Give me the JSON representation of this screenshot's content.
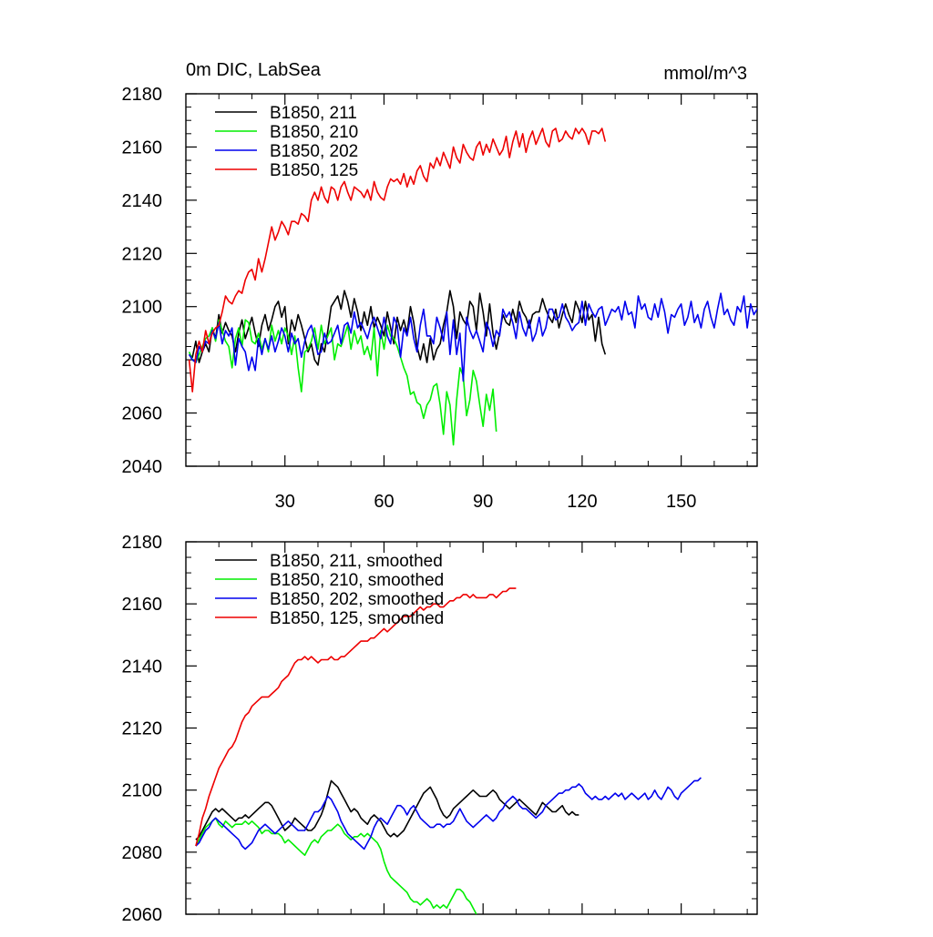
{
  "chart_data": [
    {
      "type": "line",
      "title": "0m DIC, LabSea",
      "units": "mmol/m^3",
      "xlim": [
        0,
        173
      ],
      "ylim": [
        2040,
        2180
      ],
      "x_ticks": [
        30,
        60,
        90,
        120,
        150
      ],
      "y_ticks": [
        2040,
        2060,
        2080,
        2100,
        2120,
        2140,
        2160,
        2180
      ],
      "grid": false,
      "legend_position": "top-left",
      "series": [
        {
          "name": "B1850, 211",
          "color": "#000000",
          "start_x": 1,
          "values": [
            2082,
            2081,
            2087,
            2079,
            2083,
            2086,
            2083,
            2092,
            2088,
            2097,
            2090,
            2094,
            2091,
            2089,
            2083,
            2090,
            2095,
            2088,
            2092,
            2096,
            2090,
            2085,
            2093,
            2097,
            2091,
            2095,
            2100,
            2102,
            2096,
            2100,
            2086,
            2095,
            2091,
            2097,
            2093,
            2088,
            2083,
            2086,
            2080,
            2078,
            2086,
            2083,
            2091,
            2100,
            2102,
            2104,
            2099,
            2106,
            2102,
            2096,
            2103,
            2098,
            2091,
            2098,
            2093,
            2100,
            2092,
            2096,
            2093,
            2089,
            2098,
            2092,
            2086,
            2096,
            2091,
            2095,
            2090,
            2100,
            2094,
            2085,
            2080,
            2086,
            2079,
            2088,
            2080,
            2084,
            2086,
            2093,
            2098,
            2106,
            2100,
            2088,
            2098,
            2095,
            2093,
            2102,
            2100,
            2091,
            2105,
            2098,
            2089,
            2101,
            2090,
            2084,
            2090,
            2097,
            2094,
            2093,
            2099,
            2094,
            2102,
            2098,
            2096,
            2092,
            2097,
            2098,
            2098,
            2103,
            2099,
            2096,
            2094,
            2099,
            2092,
            2097,
            2101,
            2097,
            2094,
            2102,
            2099,
            2094,
            2102,
            2095,
            2097,
            2087,
            2096,
            2086,
            2082
          ]
        },
        {
          "name": "B1850, 210",
          "color": "#00ee00",
          "start_x": 1,
          "values": [
            2083,
            2080,
            2079,
            2082,
            2085,
            2088,
            2089,
            2092,
            2087,
            2095,
            2091,
            2087,
            2085,
            2077,
            2088,
            2092,
            2085,
            2095,
            2094,
            2087,
            2086,
            2090,
            2084,
            2088,
            2083,
            2093,
            2087,
            2091,
            2086,
            2092,
            2089,
            2082,
            2089,
            2077,
            2068,
            2083,
            2084,
            2087,
            2092,
            2084,
            2093,
            2086,
            2089,
            2092,
            2080,
            2086,
            2085,
            2089,
            2093,
            2084,
            2091,
            2086,
            2089,
            2082,
            2085,
            2080,
            2092,
            2074,
            2091,
            2084,
            2093,
            2089,
            2088,
            2085,
            2081,
            2077,
            2074,
            2067,
            2068,
            2064,
            2063,
            2058,
            2063,
            2065,
            2070,
            2071,
            2063,
            2052,
            2068,
            2063,
            2048,
            2065,
            2077,
            2074,
            2059,
            2065,
            2076,
            2072,
            2063,
            2055,
            2067,
            2061,
            2069,
            2053
          ]
        },
        {
          "name": "B1850, 202",
          "color": "#0000ee",
          "start_x": 1,
          "values": [
            2082,
            2080,
            2079,
            2085,
            2083,
            2087,
            2086,
            2091,
            2088,
            2094,
            2086,
            2091,
            2089,
            2092,
            2078,
            2088,
            2085,
            2083,
            2076,
            2081,
            2076,
            2088,
            2082,
            2088,
            2084,
            2089,
            2083,
            2087,
            2092,
            2089,
            2083,
            2090,
            2086,
            2088,
            2081,
            2087,
            2091,
            2093,
            2088,
            2082,
            2083,
            2090,
            2086,
            2087,
            2090,
            2093,
            2086,
            2093,
            2094,
            2090,
            2098,
            2092,
            2094,
            2091,
            2088,
            2093,
            2096,
            2092,
            2088,
            2096,
            2089,
            2086,
            2096,
            2093,
            2081,
            2092,
            2089,
            2096,
            2088,
            2083,
            2093,
            2099,
            2089,
            2089,
            2086,
            2096,
            2092,
            2087,
            2098,
            2082,
            2095,
            2082,
            2090,
            2072,
            2096,
            2091,
            2088,
            2091,
            2087,
            2083,
            2094,
            2091,
            2085,
            2091,
            2089,
            2099,
            2096,
            2098,
            2094,
            2088,
            2098,
            2092,
            2089,
            2095,
            2087,
            2090,
            2096,
            2089,
            2092,
            2099,
            2099,
            2095,
            2096,
            2101,
            2096,
            2094,
            2091,
            2093,
            2094,
            2102,
            2093,
            2101,
            2098,
            2096,
            2099,
            2100,
            2093,
            2096,
            2099,
            2098,
            2100,
            2095,
            2102,
            2097,
            2098,
            2092,
            2104,
            2099,
            2101,
            2096,
            2095,
            2101,
            2096,
            2103,
            2098,
            2090,
            2097,
            2096,
            2099,
            2101,
            2093,
            2096,
            2102,
            2094,
            2097,
            2092,
            2099,
            2102,
            2096,
            2092,
            2099,
            2105,
            2097,
            2099,
            2095,
            2093,
            2100,
            2098,
            2104,
            2092,
            2101,
            2097,
            2099,
            2103,
            2105,
            2100,
            2098,
            2099,
            2106,
            2100,
            2098,
            2108,
            2096,
            2099
          ]
        },
        {
          "name": "B1850, 125",
          "color": "#ee0000",
          "start_x": 1,
          "values": [
            2080,
            2068,
            2082,
            2087,
            2083,
            2091,
            2086,
            2090,
            2092,
            2093,
            2098,
            2104,
            2102,
            2101,
            2104,
            2106,
            2105,
            2110,
            2113,
            2114,
            2110,
            2118,
            2113,
            2118,
            2124,
            2130,
            2125,
            2128,
            2132,
            2130,
            2127,
            2132,
            2132,
            2131,
            2135,
            2134,
            2132,
            2140,
            2143,
            2140,
            2145,
            2141,
            2139,
            2145,
            2144,
            2140,
            2145,
            2147,
            2143,
            2140,
            2145,
            2144,
            2143,
            2141,
            2144,
            2140,
            2147,
            2143,
            2141,
            2140,
            2145,
            2148,
            2147,
            2148,
            2146,
            2150,
            2145,
            2149,
            2146,
            2151,
            2153,
            2149,
            2147,
            2154,
            2152,
            2156,
            2153,
            2158,
            2155,
            2152,
            2160,
            2156,
            2154,
            2161,
            2158,
            2156,
            2155,
            2160,
            2162,
            2157,
            2161,
            2158,
            2163,
            2160,
            2157,
            2159,
            2164,
            2156,
            2162,
            2166,
            2160,
            2165,
            2158,
            2163,
            2166,
            2161,
            2164,
            2167,
            2162,
            2160,
            2166,
            2167,
            2162,
            2163,
            2166,
            2164,
            2163,
            2167,
            2165,
            2167,
            2165,
            2161,
            2166,
            2166,
            2165,
            2167,
            2162
          ]
        }
      ]
    },
    {
      "type": "line",
      "title": "",
      "xlim": [
        0,
        173
      ],
      "ylim": [
        2060,
        2180
      ],
      "y_ticks": [
        2060,
        2080,
        2100,
        2120,
        2140,
        2160,
        2180
      ],
      "grid": false,
      "legend_position": "top-left",
      "series": [
        {
          "name": "B1850, 211, smoothed",
          "color": "#000000",
          "start_x": 3,
          "values": [
            2084,
            2085,
            2087,
            2089,
            2091,
            2093,
            2094,
            2093,
            2094,
            2093,
            2092,
            2091,
            2090,
            2091,
            2091,
            2092,
            2091,
            2092,
            2093,
            2094,
            2095,
            2096,
            2096,
            2095,
            2093,
            2091,
            2089,
            2087,
            2088,
            2089,
            2091,
            2090,
            2089,
            2088,
            2087,
            2087,
            2088,
            2090,
            2092,
            2095,
            2099,
            2103,
            2102,
            2101,
            2099,
            2097,
            2095,
            2093,
            2094,
            2093,
            2091,
            2090,
            2089,
            2091,
            2092,
            2091,
            2090,
            2088,
            2086,
            2085,
            2086,
            2085,
            2086,
            2087,
            2089,
            2091,
            2093,
            2095,
            2097,
            2099,
            2100,
            2101,
            2099,
            2097,
            2094,
            2092,
            2091,
            2092,
            2094,
            2095,
            2096,
            2097,
            2098,
            2099,
            2100,
            2099,
            2098,
            2098,
            2098,
            2099,
            2100,
            2099,
            2097,
            2096,
            2095,
            2094,
            2095,
            2096,
            2097,
            2096,
            2095,
            2094,
            2093,
            2092,
            2094,
            2096,
            2095,
            2094,
            2093,
            2093,
            2094,
            2095,
            2093,
            2092,
            2093,
            2092,
            2092
          ]
        },
        {
          "name": "B1850, 210, smoothed",
          "color": "#00ee00",
          "start_x": 3,
          "values": [
            2082,
            2084,
            2086,
            2088,
            2089,
            2090,
            2091,
            2089,
            2088,
            2090,
            2089,
            2088,
            2089,
            2089,
            2089,
            2090,
            2089,
            2090,
            2089,
            2088,
            2086,
            2087,
            2087,
            2086,
            2086,
            2086,
            2085,
            2083,
            2084,
            2083,
            2082,
            2081,
            2080,
            2079,
            2081,
            2083,
            2084,
            2083,
            2085,
            2086,
            2087,
            2087,
            2088,
            2089,
            2088,
            2086,
            2085,
            2084,
            2085,
            2085,
            2086,
            2085,
            2086,
            2085,
            2084,
            2083,
            2081,
            2077,
            2074,
            2072,
            2071,
            2070,
            2069,
            2068,
            2067,
            2065,
            2064,
            2064,
            2063,
            2064,
            2065,
            2064,
            2062,
            2063,
            2062,
            2063,
            2062,
            2064,
            2066,
            2068,
            2068,
            2067,
            2065,
            2064,
            2062,
            2060
          ]
        },
        {
          "name": "B1850, 202, smoothed",
          "color": "#0000ee",
          "start_x": 3,
          "values": [
            2082,
            2083,
            2085,
            2087,
            2088,
            2090,
            2091,
            2090,
            2089,
            2088,
            2087,
            2086,
            2085,
            2084,
            2082,
            2081,
            2082,
            2083,
            2085,
            2087,
            2088,
            2089,
            2088,
            2087,
            2086,
            2087,
            2088,
            2089,
            2090,
            2089,
            2088,
            2087,
            2087,
            2087,
            2089,
            2091,
            2093,
            2093,
            2094,
            2096,
            2098,
            2097,
            2095,
            2093,
            2090,
            2088,
            2086,
            2085,
            2084,
            2083,
            2082,
            2081,
            2083,
            2085,
            2088,
            2090,
            2091,
            2090,
            2089,
            2091,
            2093,
            2095,
            2095,
            2094,
            2092,
            2094,
            2095,
            2093,
            2091,
            2090,
            2089,
            2088,
            2088,
            2089,
            2089,
            2088,
            2089,
            2089,
            2090,
            2092,
            2094,
            2092,
            2090,
            2089,
            2088,
            2089,
            2090,
            2091,
            2092,
            2091,
            2090,
            2091,
            2093,
            2094,
            2096,
            2097,
            2098,
            2097,
            2095,
            2094,
            2094,
            2093,
            2092,
            2091,
            2092,
            2093,
            2095,
            2096,
            2097,
            2098,
            2099,
            2099,
            2100,
            2100,
            2101,
            2101,
            2102,
            2101,
            2099,
            2098,
            2097,
            2098,
            2097,
            2097,
            2098,
            2097,
            2098,
            2099,
            2098,
            2099,
            2097,
            2098,
            2099,
            2098,
            2097,
            2098,
            2099,
            2097,
            2098,
            2100,
            2098,
            2097,
            2099,
            2101,
            2100,
            2098,
            2097,
            2099,
            2100,
            2101,
            2102,
            2103,
            2103,
            2104
          ]
        },
        {
          "name": "B1850, 125, smoothed",
          "color": "#ee0000",
          "start_x": 3,
          "values": [
            2082,
            2086,
            2091,
            2094,
            2098,
            2101,
            2104,
            2107,
            2109,
            2111,
            2113,
            2114,
            2116,
            2119,
            2122,
            2124,
            2125,
            2127,
            2128,
            2129,
            2130,
            2130,
            2130,
            2131,
            2132,
            2133,
            2135,
            2136,
            2137,
            2139,
            2141,
            2142,
            2142,
            2143,
            2142,
            2143,
            2142,
            2141,
            2142,
            2142,
            2142,
            2143,
            2142,
            2142,
            2143,
            2143,
            2144,
            2145,
            2146,
            2147,
            2148,
            2148,
            2148,
            2149,
            2149,
            2150,
            2151,
            2152,
            2151,
            2152,
            2153,
            2154,
            2155,
            2156,
            2156,
            2156,
            2157,
            2158,
            2159,
            2158,
            2159,
            2159,
            2160,
            2160,
            2159,
            2159,
            2160,
            2161,
            2161,
            2162,
            2162,
            2163,
            2163,
            2162,
            2163,
            2162,
            2162,
            2162,
            2162,
            2163,
            2163,
            2162,
            2163,
            2164,
            2164,
            2165,
            2165,
            2165
          ]
        }
      ]
    }
  ]
}
